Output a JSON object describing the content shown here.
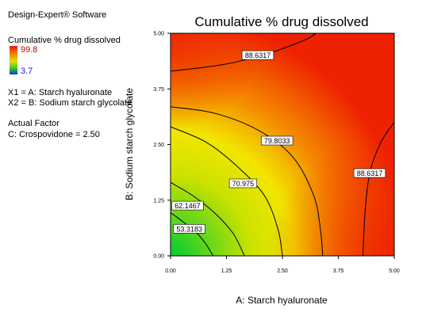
{
  "sidebar": {
    "software": "Design-Expert® Software",
    "response": "Cumulative % drug dissolved",
    "legend_high": "99.8",
    "legend_low": "3.7",
    "x1": "X1 = A: Starch hyaluronate",
    "x2": "X2 = B: Sodium starch glycolate",
    "actual_factor_label": "Actual Factor",
    "actual_factor": "C: Crospovidone = 2.50"
  },
  "chart_data": {
    "type": "contour",
    "title": "Cumulative % drug dissolved",
    "xlabel": "A: Starch hyaluronate",
    "ylabel": "B: Sodium starch glycolate",
    "xlim": [
      0,
      5
    ],
    "ylim": [
      0,
      5
    ],
    "x_ticks": [
      "0.00",
      "1.25",
      "2.50",
      "3.75",
      "5.00"
    ],
    "y_ticks": [
      "0.00",
      "1.25",
      "2.50",
      "3.75",
      "5.00"
    ],
    "colors": {
      "low": "#00cc33",
      "mid": "#f2f000",
      "high": "#ee2200"
    },
    "contours": [
      {
        "label": "53.3183",
        "label_at": [
          0.42,
          0.6
        ],
        "points": [
          [
            0,
            0.97
          ],
          [
            0.3,
            0.75
          ],
          [
            0.6,
            0.5
          ],
          [
            0.8,
            0.25
          ],
          [
            0.95,
            0
          ]
        ]
      },
      {
        "label": "62.1467",
        "label_at": [
          0.38,
          1.12
        ],
        "points": [
          [
            0,
            1.65
          ],
          [
            0.5,
            1.35
          ],
          [
            1.0,
            0.95
          ],
          [
            1.4,
            0.5
          ],
          [
            1.65,
            0
          ]
        ]
      },
      {
        "label": "70.975",
        "label_at": [
          1.62,
          1.62
        ],
        "points": [
          [
            0,
            2.9
          ],
          [
            0.8,
            2.55
          ],
          [
            1.5,
            2.0
          ],
          [
            2.1,
            1.35
          ],
          [
            2.4,
            0.6
          ],
          [
            2.5,
            0
          ]
        ]
      },
      {
        "label": "79.8033",
        "label_at": [
          2.38,
          2.58
        ],
        "points": [
          [
            0,
            3.35
          ],
          [
            1.0,
            3.2
          ],
          [
            2.0,
            2.8
          ],
          [
            2.75,
            2.2
          ],
          [
            3.2,
            1.35
          ],
          [
            3.35,
            0.6
          ],
          [
            3.4,
            0
          ]
        ]
      },
      {
        "label": "88.6317",
        "label_at": [
          1.95,
          4.5
        ],
        "points": [
          [
            0,
            4.15
          ],
          [
            1.2,
            4.3
          ],
          [
            2.2,
            4.55
          ],
          [
            3.0,
            4.85
          ],
          [
            3.25,
            5
          ]
        ]
      },
      {
        "label": "88.6317",
        "label_at": [
          4.45,
          1.85
        ],
        "points": [
          [
            5,
            3.0
          ],
          [
            4.7,
            2.55
          ],
          [
            4.45,
            1.85
          ],
          [
            4.35,
            1.0
          ],
          [
            4.3,
            0
          ]
        ]
      }
    ]
  }
}
